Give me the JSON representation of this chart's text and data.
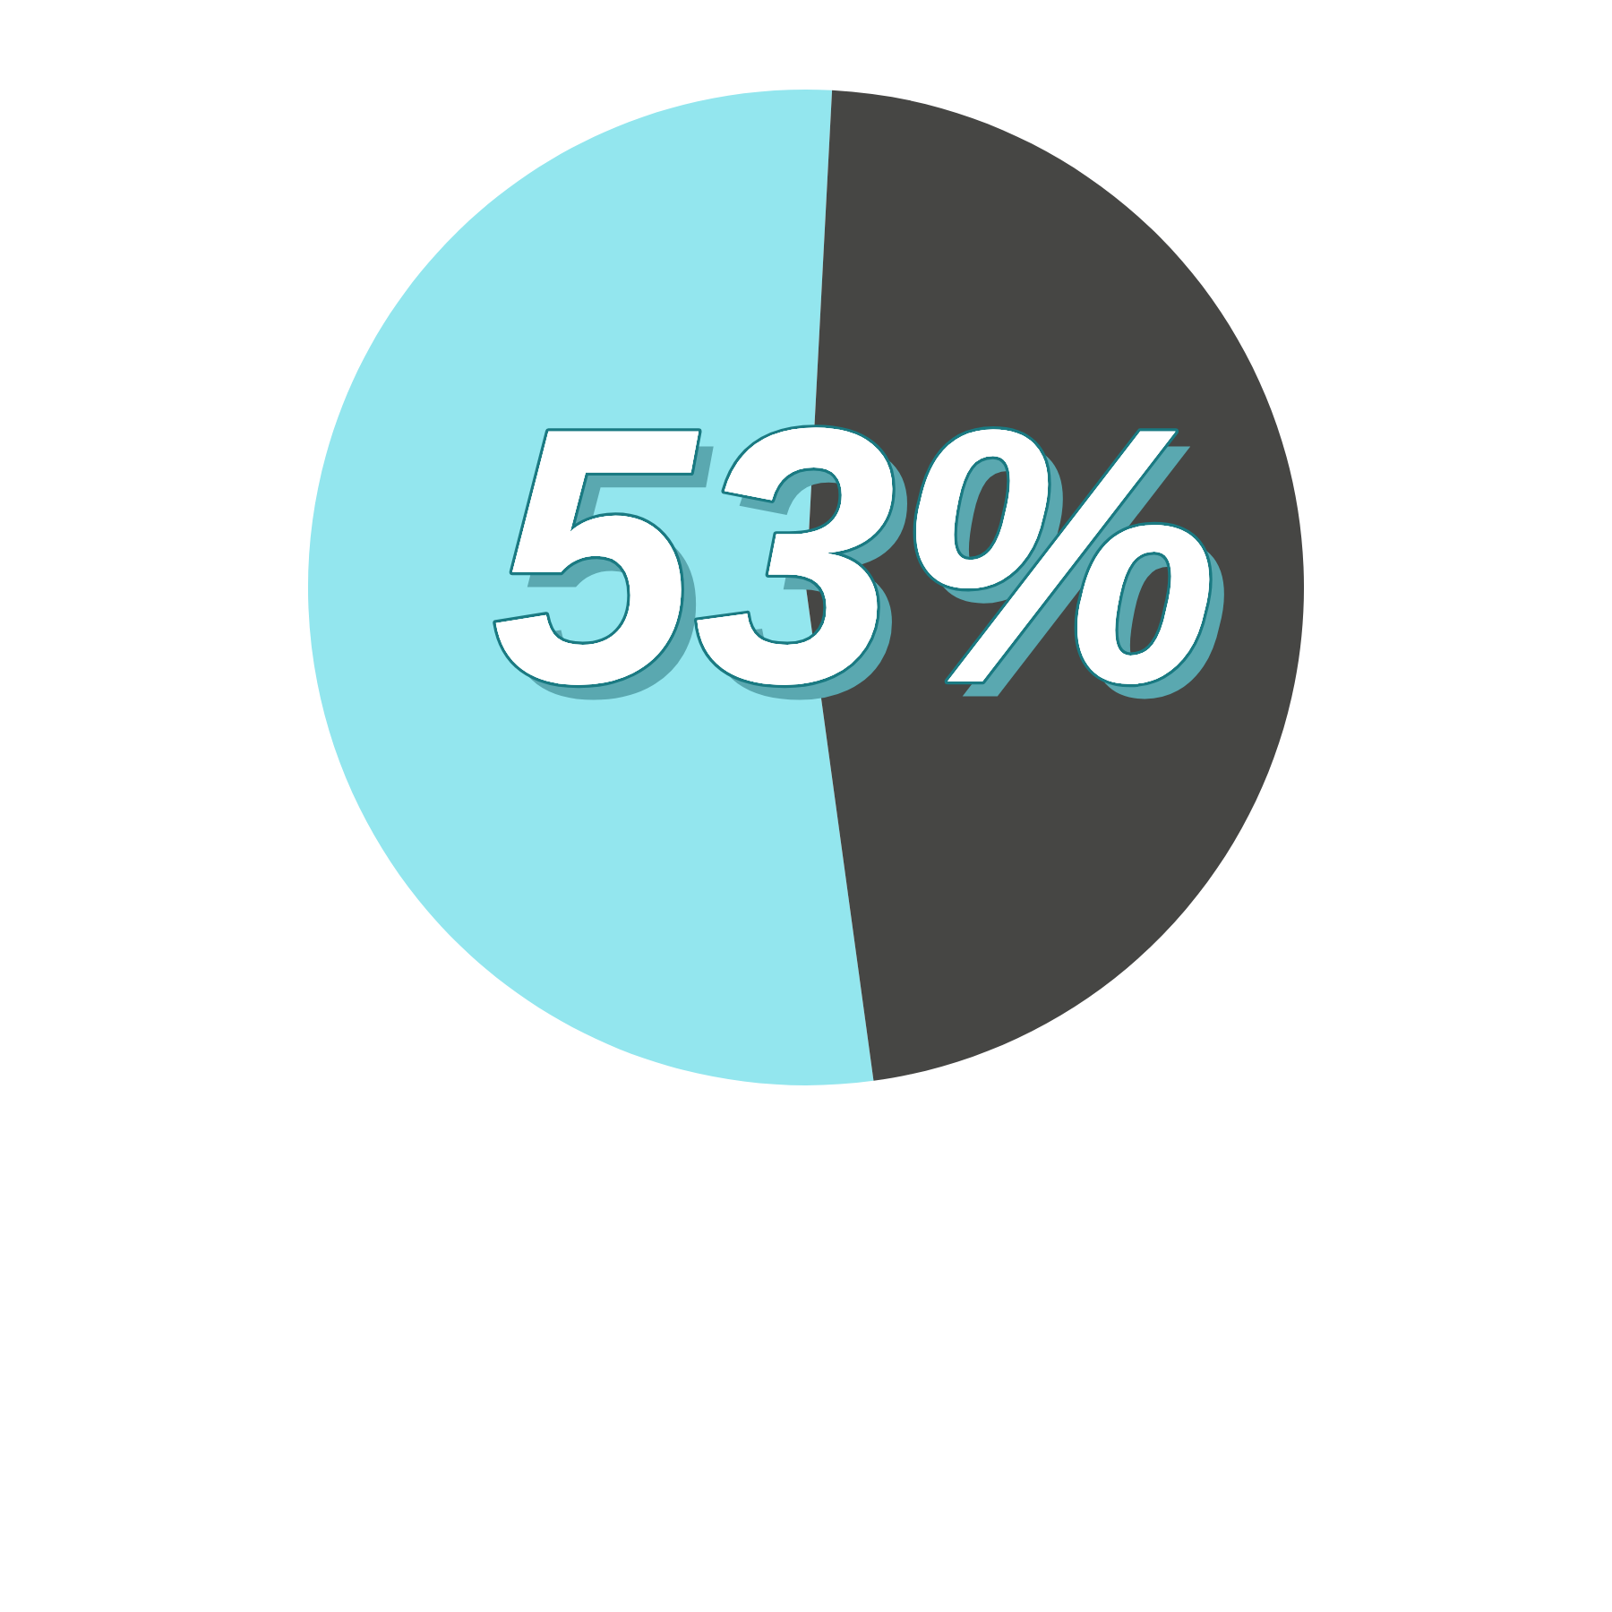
{
  "chart_data": {
    "type": "pie",
    "categories": [
      null,
      null
    ],
    "values": [
      53,
      47
    ],
    "colors": [
      "#93e6ee",
      "#464644"
    ],
    "annotations": [
      "53%"
    ]
  }
}
